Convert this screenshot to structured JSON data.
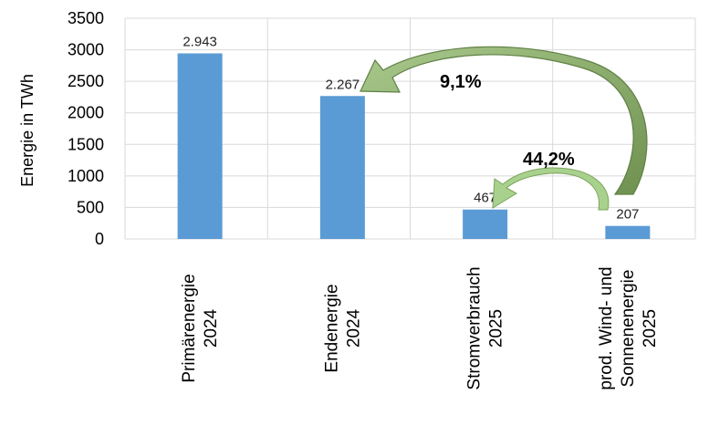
{
  "chart_data": {
    "type": "bar",
    "ylabel": "Energie in TWh",
    "ylim": [
      0,
      3500
    ],
    "yticks": [
      0,
      500,
      1000,
      1500,
      2000,
      2500,
      3000,
      3500
    ],
    "grid": true,
    "categories": [
      [
        "Primärenergie",
        "2024"
      ],
      [
        "Endenergie",
        "2024"
      ],
      [
        "Stromverbrauch",
        "2025"
      ],
      [
        "prod. Wind- und",
        "Sonnenenergie",
        "2025"
      ]
    ],
    "values": [
      2943,
      2267,
      467,
      207
    ],
    "data_labels": [
      "2.943",
      "2.267",
      "467",
      "207"
    ],
    "bar_color": "#5b9bd5",
    "annotations": [
      {
        "label": "9,1%",
        "from_category": 3,
        "to_category": 1,
        "color": "#7ba05b"
      },
      {
        "label": "44,2%",
        "from_category": 3,
        "to_category": 2,
        "color": "#a9d18e"
      }
    ]
  }
}
